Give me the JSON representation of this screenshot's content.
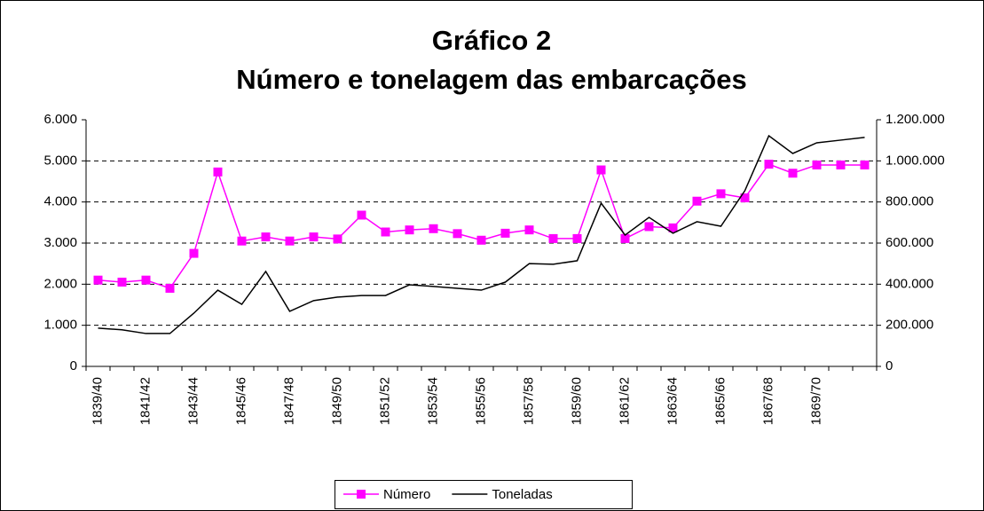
{
  "chart_data": {
    "type": "line",
    "title": [
      "Gráfico 2",
      "Número e tonelagem das embarcações"
    ],
    "categories": [
      "1839/40",
      null,
      "1841/42",
      null,
      "1843/44",
      null,
      "1845/46",
      null,
      "1847/48",
      null,
      "1849/50",
      null,
      "1851/52",
      null,
      "1853/54",
      null,
      "1855/56",
      null,
      "1857/58",
      null,
      "1859/60",
      null,
      "1861/62",
      null,
      "1863/64",
      null,
      "1865/66",
      null,
      "1867/68",
      null,
      "1869/70",
      null,
      null
    ],
    "series": [
      {
        "name": "Número",
        "color": "#ff00ff",
        "marker": "square",
        "values": [
          2100,
          2050,
          2100,
          1900,
          2750,
          4730,
          3050,
          3150,
          3050,
          3150,
          3100,
          3680,
          3270,
          3320,
          3350,
          3230,
          3070,
          3240,
          3320,
          3110,
          3110,
          4780,
          3110,
          3400,
          3370,
          4020,
          4200,
          4100,
          4920,
          4700,
          4900,
          4900,
          4900
        ]
      },
      {
        "name": "Toneladas",
        "color": "#000000",
        "axis": "y2",
        "values": [
          186000,
          178000,
          160000,
          160000,
          259000,
          371000,
          302000,
          462000,
          268000,
          320000,
          337000,
          345000,
          345000,
          397000,
          389000,
          380000,
          371000,
          410000,
          500000,
          497000,
          514000,
          794000,
          639000,
          725000,
          648000,
          704000,
          682000,
          855000,
          1122000,
          1036000,
          1088000,
          1101000,
          1114000
        ]
      }
    ],
    "ylim": [
      0,
      6000
    ],
    "yticks": [
      0,
      {
        "value": 1000,
        "label": "1.000"
      },
      {
        "value": 2000,
        "label": "2.000"
      },
      {
        "value": 3000,
        "label": "3.000"
      },
      {
        "value": 4000,
        "label": "4.000"
      },
      {
        "value": 5000,
        "label": "5.000"
      },
      {
        "value": 6000,
        "label": "6.000"
      }
    ],
    "y2lim": [
      0,
      1200000
    ],
    "y2ticks": [
      0,
      {
        "value": 200000,
        "label": "200.000"
      },
      {
        "value": 400000,
        "label": "400.000"
      },
      {
        "value": 600000,
        "label": "600.000"
      },
      {
        "value": 800000,
        "label": "800.000"
      },
      {
        "value": 1000000,
        "label": "1.000.000"
      },
      {
        "value": 1200000,
        "label": "1.200.000"
      }
    ],
    "grid": true,
    "legend": "bottom"
  }
}
